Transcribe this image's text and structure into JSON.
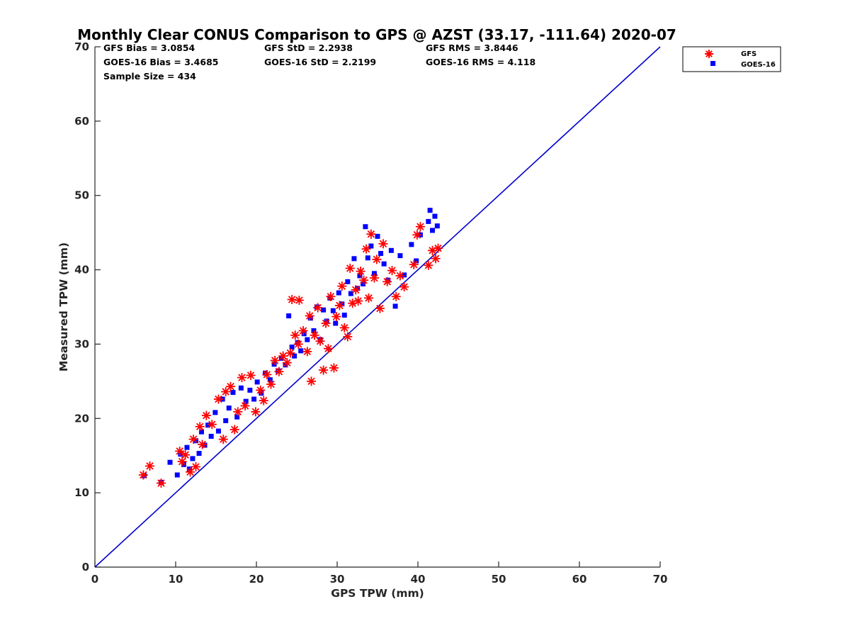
{
  "chart_data": {
    "type": "scatter",
    "title": "Monthly Clear CONUS Comparison to GPS @ AZST (33.17, -111.64) 2020-07",
    "xlabel": "GPS TPW (mm)",
    "ylabel": "Measured TPW (mm)",
    "xlim": [
      0,
      70
    ],
    "ylim": [
      0,
      70
    ],
    "xticks": [
      0,
      10,
      20,
      30,
      40,
      50,
      60,
      70
    ],
    "yticks": [
      0,
      10,
      20,
      30,
      40,
      50,
      60,
      70
    ],
    "grid": false,
    "legend_position": "top-right",
    "stats": {
      "gfs_bias": "GFS Bias = 3.0854",
      "goes_bias": "GOES-16 Bias = 3.4685",
      "sample_size": "Sample Size = 434",
      "gfs_std": "GFS StD = 2.2938",
      "goes_std": "GOES-16 StD = 2.2199",
      "gfs_rms": "GFS RMS = 3.8446",
      "goes_rms": "GOES-16 RMS = 4.118"
    },
    "reference_line": {
      "x": [
        0,
        70
      ],
      "y": [
        0,
        70
      ],
      "color": "#0000cc"
    },
    "series": [
      {
        "name": "GFS",
        "marker": "asterisk",
        "color": "#ff0000",
        "x": [
          6.0,
          6.8,
          8.2,
          10.5,
          10.8,
          11.2,
          11.8,
          12.2,
          12.5,
          13.0,
          13.3,
          13.8,
          14.5,
          15.3,
          15.9,
          16.2,
          16.8,
          17.3,
          17.7,
          18.2,
          18.6,
          19.3,
          19.9,
          20.5,
          20.9,
          21.3,
          21.8,
          22.3,
          22.8,
          23.3,
          23.8,
          24.2,
          24.4,
          24.8,
          25.2,
          25.3,
          25.8,
          26.3,
          26.6,
          26.8,
          27.2,
          27.6,
          27.9,
          28.3,
          28.6,
          28.9,
          29.2,
          29.6,
          29.9,
          30.3,
          30.6,
          30.9,
          31.3,
          31.6,
          31.9,
          32.3,
          32.6,
          32.9,
          33.3,
          33.6,
          33.9,
          34.2,
          34.6,
          34.9,
          35.3,
          35.7,
          36.2,
          36.8,
          37.3,
          37.8,
          38.3,
          39.5,
          39.9,
          40.3,
          41.3,
          41.8,
          42.2,
          42.5
        ],
        "y": [
          12.4,
          13.6,
          11.3,
          15.6,
          14.2,
          15.1,
          12.8,
          17.2,
          13.5,
          18.9,
          16.5,
          20.4,
          19.2,
          22.6,
          17.2,
          23.6,
          24.3,
          18.5,
          20.9,
          25.5,
          21.7,
          25.8,
          20.9,
          23.8,
          22.4,
          25.9,
          24.6,
          27.8,
          26.3,
          28.4,
          27.5,
          28.8,
          36.0,
          31.2,
          30.0,
          35.9,
          31.8,
          29.0,
          33.8,
          25.0,
          31.2,
          34.9,
          30.4,
          26.5,
          32.8,
          29.4,
          36.4,
          26.8,
          33.7,
          35.2,
          37.8,
          32.2,
          31.0,
          40.2,
          35.5,
          37.3,
          35.8,
          39.8,
          38.6,
          42.8,
          36.2,
          44.8,
          38.9,
          41.4,
          34.8,
          43.5,
          38.4,
          39.9,
          36.4,
          39.2,
          37.7,
          40.7,
          44.7,
          45.8,
          40.6,
          42.6,
          41.5,
          42.9
        ]
      },
      {
        "name": "GOES-16",
        "marker": "square",
        "color": "#0000ff",
        "x": [
          6.1,
          8.2,
          9.3,
          10.2,
          10.6,
          11.0,
          11.4,
          11.7,
          12.1,
          12.5,
          12.9,
          13.2,
          13.6,
          14.0,
          14.4,
          14.9,
          15.3,
          15.8,
          16.2,
          16.6,
          17.1,
          17.6,
          18.1,
          18.7,
          19.2,
          19.7,
          20.1,
          20.6,
          21.1,
          21.7,
          22.2,
          22.7,
          23.1,
          23.6,
          24.0,
          24.4,
          24.7,
          25.1,
          25.5,
          25.9,
          26.3,
          26.7,
          27.1,
          27.5,
          27.9,
          28.3,
          28.7,
          29.1,
          29.5,
          29.8,
          30.2,
          30.6,
          30.9,
          31.3,
          31.7,
          32.1,
          32.5,
          32.8,
          33.2,
          33.5,
          33.8,
          34.2,
          34.6,
          35.0,
          35.4,
          35.8,
          36.3,
          36.7,
          37.2,
          37.8,
          38.3,
          39.2,
          39.8,
          40.3,
          41.3,
          41.5,
          41.8,
          42.1,
          42.4
        ],
        "y": [
          12.3,
          11.4,
          14.1,
          12.4,
          15.2,
          13.8,
          16.1,
          13.2,
          14.6,
          17.0,
          15.3,
          18.2,
          16.4,
          19.1,
          17.6,
          20.8,
          18.3,
          22.6,
          19.7,
          21.4,
          23.5,
          20.2,
          24.1,
          22.3,
          23.8,
          22.6,
          24.9,
          23.4,
          26.1,
          25.2,
          27.3,
          26.4,
          28.1,
          27.2,
          33.8,
          29.6,
          28.4,
          30.2,
          29.1,
          31.4,
          30.6,
          33.5,
          31.8,
          35.0,
          30.6,
          34.6,
          33.1,
          36.2,
          34.5,
          32.8,
          36.9,
          35.4,
          33.9,
          38.4,
          36.8,
          41.5,
          37.5,
          39.2,
          38.1,
          45.8,
          41.6,
          43.2,
          39.5,
          44.5,
          42.2,
          40.8,
          38.6,
          42.6,
          35.1,
          41.9,
          39.3,
          43.4,
          41.2,
          44.7,
          46.5,
          48.0,
          45.3,
          47.2,
          45.9
        ]
      }
    ]
  }
}
